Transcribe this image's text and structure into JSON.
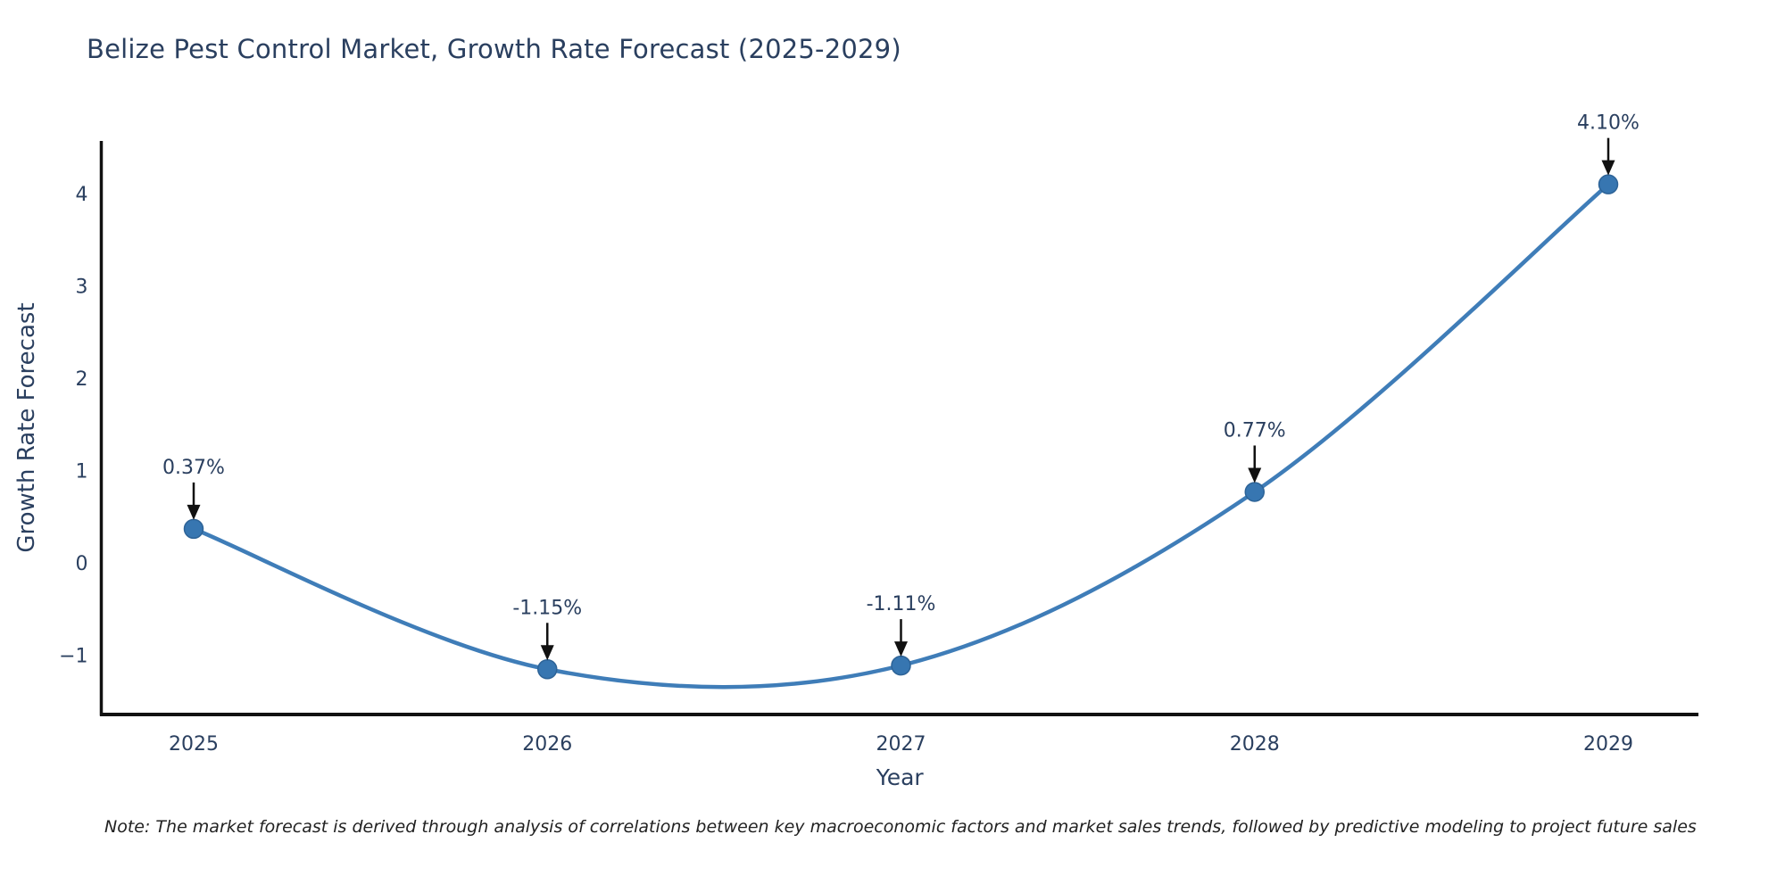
{
  "title": "Belize Pest Control Market, Growth Rate Forecast (2025-2029)",
  "note": "Note: The market forecast is derived through analysis of correlations between key macroeconomic factors and market sales trends, followed by predictive modeling to project future sales",
  "chart_data": {
    "type": "line",
    "line_shape": "spline",
    "x": [
      "2025",
      "2026",
      "2027",
      "2028",
      "2029"
    ],
    "series": [
      {
        "name": "Growth Rate Forecast",
        "values": [
          0.37,
          -1.15,
          -1.11,
          0.77,
          4.1
        ]
      }
    ],
    "point_labels": [
      "0.37%",
      "-1.15%",
      "-1.11%",
      "0.77%",
      "4.10%"
    ],
    "title": "Belize Pest Control Market, Growth Rate Forecast (2025-2029)",
    "xlabel": "Year",
    "ylabel": "Growth Rate Forecast",
    "yticks": [
      4,
      3,
      2,
      1,
      0,
      -1
    ],
    "ylim": [
      -1.64,
      4.57
    ],
    "grid": false,
    "legend": false,
    "annotations": "black down-arrows from each percentage label to its data point",
    "colors": {
      "line": "#3f7db8",
      "marker": "#3776b1",
      "marker_edge": "#2d6397",
      "axis": "#111111",
      "tick_text": "#2a3f5f",
      "annotation_text": "#2a3f5f",
      "title_text": "#2a3f5f"
    }
  }
}
